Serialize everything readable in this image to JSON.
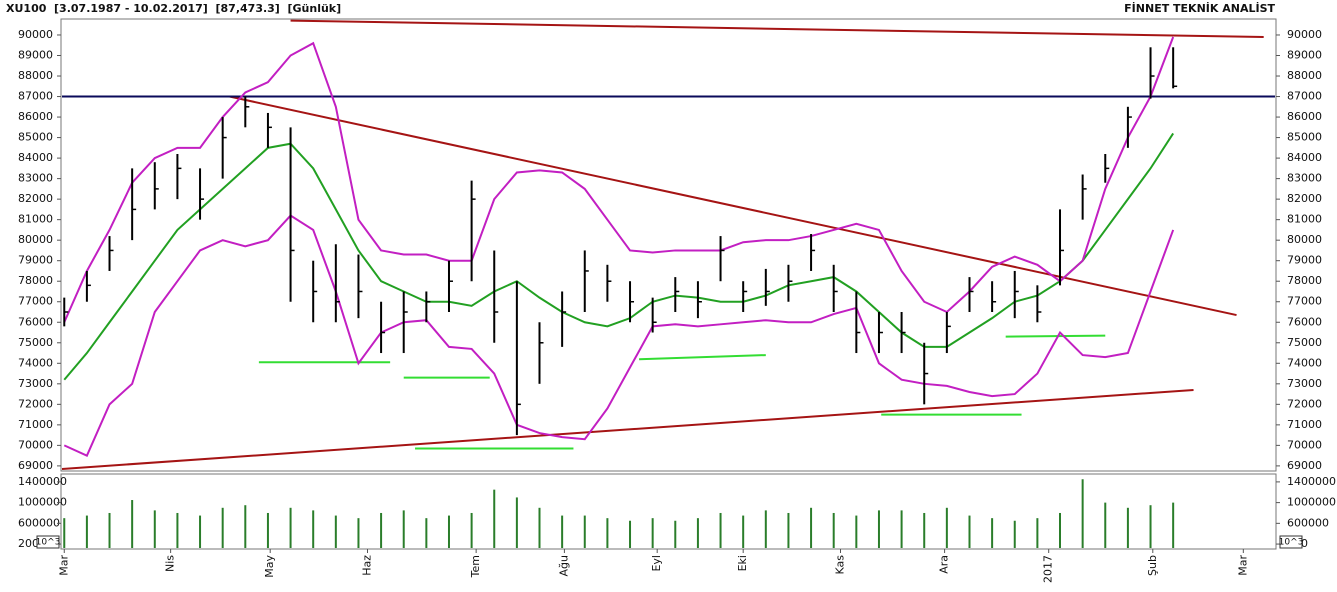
{
  "chart_data": [
    {
      "type": "ohlc",
      "title": "XU100  [3.07.1987 - 10.02.2017]  [87,473.3]  [Günlük]",
      "source": "FİNNET TEKNİK ANALİST",
      "xlim": [
        -0.1,
        53.5
      ],
      "ylim": [
        68800,
        90730
      ],
      "yticks": [
        69000,
        70000,
        71000,
        72000,
        73000,
        74000,
        75000,
        76000,
        77000,
        78000,
        79000,
        80000,
        81000,
        82000,
        83000,
        84000,
        85000,
        86000,
        87000,
        88000,
        89000,
        90000
      ],
      "bars": {
        "color": "#000000",
        "high": [
          77200,
          78500,
          80200,
          83500,
          83800,
          84200,
          83500,
          86000,
          87000,
          86200,
          85500,
          79000,
          79800,
          79300,
          77000,
          77500,
          77500,
          79000,
          82900,
          79500,
          78000,
          76000,
          77500,
          79500,
          78800,
          78000,
          77200,
          78200,
          78000,
          80200,
          78000,
          78600,
          78800,
          80300,
          78800,
          77500,
          76500,
          76500,
          75000,
          76500,
          78200,
          78000,
          78500,
          77800,
          81500,
          83200,
          84200,
          86500,
          89400,
          89400
        ],
        "low": [
          75800,
          77000,
          78500,
          80000,
          81500,
          82000,
          81000,
          83000,
          85500,
          84500,
          77000,
          76000,
          76000,
          76200,
          74500,
          74500,
          76000,
          76500,
          78000,
          75000,
          70500,
          73000,
          74800,
          76500,
          77000,
          76000,
          75500,
          76500,
          76200,
          78000,
          76500,
          76800,
          77000,
          78500,
          76500,
          74500,
          74500,
          74500,
          72000,
          74500,
          76500,
          76500,
          76200,
          76000,
          77800,
          81000,
          82800,
          84500,
          86900,
          87400
        ],
        "close": [
          76500,
          77800,
          79500,
          81500,
          82500,
          83500,
          82000,
          85000,
          86500,
          85500,
          79500,
          77500,
          77000,
          77500,
          75500,
          76500,
          77000,
          78000,
          82000,
          76500,
          72000,
          75000,
          76500,
          78500,
          78000,
          77000,
          76000,
          77500,
          77000,
          79500,
          77500,
          77500,
          78000,
          79500,
          77500,
          75500,
          75500,
          75500,
          73500,
          75800,
          77500,
          77000,
          77500,
          76500,
          79500,
          82500,
          83500,
          86000,
          88000,
          87500
        ]
      },
      "series": [
        {
          "color": "#22a022",
          "values": [
            73200,
            74500,
            76000,
            77500,
            79000,
            80500,
            81500,
            82500,
            83500,
            84500,
            84700,
            83500,
            81500,
            79500,
            78000,
            77500,
            77000,
            77000,
            76800,
            77500,
            78000,
            77200,
            76500,
            76000,
            75800,
            76200,
            77000,
            77300,
            77200,
            77000,
            77000,
            77300,
            77800,
            78000,
            78200,
            77500,
            76500,
            75500,
            74800,
            74800,
            75500,
            76200,
            77000,
            77300,
            78000,
            79000,
            80500,
            82000,
            83500,
            85200
          ]
        },
        {
          "color": "#c21fc2",
          "values": [
            76000,
            78500,
            80500,
            82800,
            84000,
            84500,
            84500,
            86000,
            87200,
            87700,
            89000,
            89600,
            86500,
            81000,
            79500,
            79300,
            79300,
            79000,
            79000,
            82000,
            83300,
            83400,
            83300,
            82500,
            81000,
            79500,
            79400,
            79500,
            79500,
            79500,
            79900,
            80000,
            80000,
            80200,
            80500,
            80800,
            80500,
            78500,
            77000,
            76500,
            77500,
            78700,
            79200,
            78800,
            78000,
            79000,
            82500,
            85000,
            87000,
            89900
          ]
        },
        {
          "color": "#c21fc2",
          "values": [
            70000,
            69500,
            72000,
            73000,
            76500,
            78000,
            79500,
            80000,
            79700,
            80000,
            81200,
            80500,
            77500,
            74000,
            75500,
            76000,
            76100,
            74800,
            74700,
            73500,
            71000,
            70600,
            70400,
            70300,
            71800,
            73800,
            75800,
            75900,
            75800,
            75900,
            76000,
            76100,
            76000,
            76000,
            76400,
            76700,
            74000,
            73200,
            73000,
            72900,
            72600,
            72400,
            72500,
            73500,
            75500,
            74400,
            74300,
            74500,
            77500,
            80500
          ]
        }
      ],
      "lines": [
        {
          "color": "#a51414",
          "x": [
            10,
            53
          ],
          "y": [
            90700,
            89900
          ]
        },
        {
          "color": "#a51414",
          "x": [
            7.3,
            51.8
          ],
          "y": [
            87000,
            76350
          ]
        },
        {
          "color": "#a51414",
          "x": [
            -0.1,
            49.9
          ],
          "y": [
            68850,
            72700
          ]
        },
        {
          "color": "#0a0a5a",
          "x": [
            -0.1,
            53.5
          ],
          "y": [
            87000,
            87000
          ]
        },
        {
          "color": "#33dd33",
          "x": [
            8.6,
            14.4
          ],
          "y": [
            74050,
            74050
          ]
        },
        {
          "color": "#33dd33",
          "x": [
            15,
            18.8
          ],
          "y": [
            73300,
            73300
          ]
        },
        {
          "color": "#33dd33",
          "x": [
            15.5,
            22.5
          ],
          "y": [
            69850,
            69850
          ]
        },
        {
          "color": "#33dd33",
          "x": [
            25.4,
            31
          ],
          "y": [
            74200,
            74400
          ]
        },
        {
          "color": "#33dd33",
          "x": [
            36.1,
            42.3
          ],
          "y": [
            71500,
            71500
          ]
        },
        {
          "color": "#33dd33",
          "x": [
            41.6,
            46
          ],
          "y": [
            75300,
            75350
          ]
        }
      ]
    },
    {
      "type": "bar",
      "xlim": [
        -0.1,
        53.5
      ],
      "xticks": [
        {
          "value": 0,
          "label": "Mar"
        },
        {
          "value": 4.7,
          "label": "Nis"
        },
        {
          "value": 9.1,
          "label": "May"
        },
        {
          "value": 13.4,
          "label": "Haz"
        },
        {
          "value": 18.2,
          "label": "Tem"
        },
        {
          "value": 22.1,
          "label": "Ağu"
        },
        {
          "value": 26.2,
          "label": "Eyl"
        },
        {
          "value": 30,
          "label": "Eki"
        },
        {
          "value": 34.3,
          "label": "Kas"
        },
        {
          "value": 38.9,
          "label": "Ara"
        },
        {
          "value": 43.5,
          "label": "2017"
        },
        {
          "value": 48.1,
          "label": "Şub"
        },
        {
          "value": 52.1,
          "label": "Mar"
        }
      ],
      "ylim": [
        124000,
        1533000
      ],
      "yticks": [
        {
          "value": 200000,
          "label": "200"
        },
        600000,
        1000000,
        1400000
      ],
      "unit_label": "10^3",
      "color": "#2a7d2a",
      "values": [
        700000,
        750000,
        800000,
        1050000,
        850000,
        800000,
        750000,
        900000,
        950000,
        800000,
        900000,
        850000,
        750000,
        700000,
        800000,
        850000,
        700000,
        750000,
        800000,
        1250000,
        1100000,
        900000,
        750000,
        750000,
        700000,
        650000,
        700000,
        650000,
        700000,
        800000,
        750000,
        850000,
        800000,
        900000,
        800000,
        750000,
        850000,
        850000,
        800000,
        900000,
        750000,
        700000,
        650000,
        700000,
        800000,
        1450000,
        1000000,
        900000,
        950000,
        1000000
      ]
    }
  ]
}
